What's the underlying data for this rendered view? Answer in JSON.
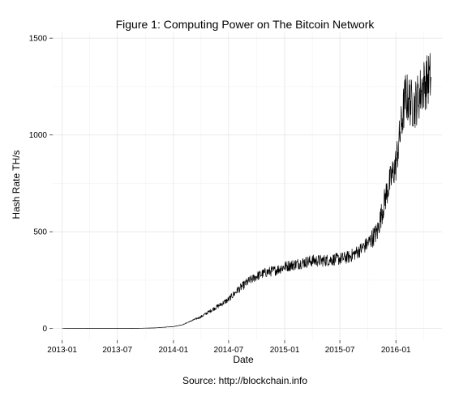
{
  "chart_data": {
    "type": "line",
    "title": "Figure 1: Computing Power on The Bitcoin Network",
    "xlabel": "Date",
    "ylabel": "Hash Rate TH/s",
    "caption": "Source: http://blockchain.info",
    "x_range": [
      "2012-12-01",
      "2016-05-31"
    ],
    "ylim": [
      -60,
      1530
    ],
    "grid": true,
    "legend": "none",
    "x_ticks": [
      {
        "value": "2013-01-01",
        "label": "2013-01"
      },
      {
        "value": "2013-07-01",
        "label": "2013-07"
      },
      {
        "value": "2014-01-01",
        "label": "2014-01"
      },
      {
        "value": "2014-07-01",
        "label": "2014-07"
      },
      {
        "value": "2015-01-01",
        "label": "2015-01"
      },
      {
        "value": "2015-07-01",
        "label": "2015-07"
      },
      {
        "value": "2016-01-01",
        "label": "2016-01"
      }
    ],
    "y_ticks": [
      0,
      500,
      1000,
      1500
    ],
    "series": [
      {
        "color": "#000000",
        "points": [
          {
            "x": "2013-01-01",
            "y": 0
          },
          {
            "x": "2013-04-01",
            "y": 0.5
          },
          {
            "x": "2013-07-01",
            "y": 0.5
          },
          {
            "x": "2013-09-01",
            "y": 1
          },
          {
            "x": "2013-11-01",
            "y": 3
          },
          {
            "x": "2014-01-01",
            "y": 10
          },
          {
            "x": "2014-02-01",
            "y": 20
          },
          {
            "x": "2014-03-01",
            "y": 40
          },
          {
            "x": "2014-04-01",
            "y": 60
          },
          {
            "x": "2014-05-01",
            "y": 90
          },
          {
            "x": "2014-06-01",
            "y": 120
          },
          {
            "x": "2014-07-01",
            "y": 150
          },
          {
            "x": "2014-08-01",
            "y": 200
          },
          {
            "x": "2014-09-01",
            "y": 240
          },
          {
            "x": "2014-10-01",
            "y": 270
          },
          {
            "x": "2014-11-01",
            "y": 290
          },
          {
            "x": "2014-12-01",
            "y": 300
          },
          {
            "x": "2015-01-01",
            "y": 320
          },
          {
            "x": "2015-02-01",
            "y": 330
          },
          {
            "x": "2015-03-01",
            "y": 340
          },
          {
            "x": "2015-04-01",
            "y": 350
          },
          {
            "x": "2015-05-01",
            "y": 350
          },
          {
            "x": "2015-06-01",
            "y": 355
          },
          {
            "x": "2015-07-01",
            "y": 360
          },
          {
            "x": "2015-08-01",
            "y": 370
          },
          {
            "x": "2015-09-01",
            "y": 400
          },
          {
            "x": "2015-10-01",
            "y": 440
          },
          {
            "x": "2015-11-01",
            "y": 500
          },
          {
            "x": "2015-12-01",
            "y": 700
          },
          {
            "x": "2016-01-01",
            "y": 850
          },
          {
            "x": "2016-02-01",
            "y": 1200
          },
          {
            "x": "2016-03-01",
            "y": 1150
          },
          {
            "x": "2016-04-01",
            "y": 1260
          },
          {
            "x": "2016-04-25",
            "y": 1300
          }
        ]
      }
    ]
  }
}
